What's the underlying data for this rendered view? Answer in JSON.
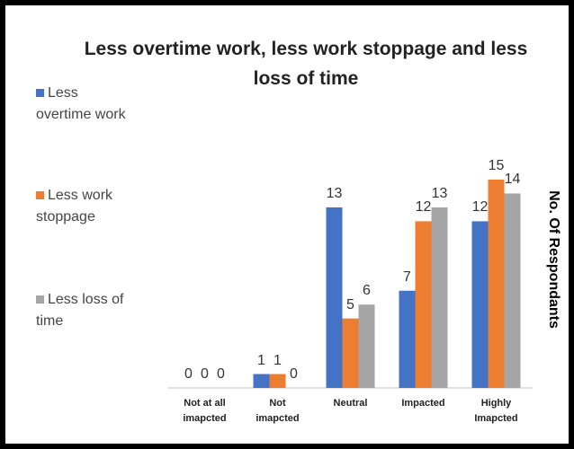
{
  "chart_data": {
    "type": "bar",
    "title": "Less overtime work, less work stoppage and less loss of time",
    "y_label": "No. Of Respondants",
    "categories": [
      "Not at all imapcted",
      "Not imapcted",
      "Neutral",
      "Impacted",
      "Highly Imapcted"
    ],
    "series": [
      {
        "name": "Less overtime work",
        "color": "#4472c4",
        "values": [
          0,
          1,
          13,
          7,
          12
        ]
      },
      {
        "name": "Less work stoppage",
        "color": "#ed7d31",
        "values": [
          0,
          1,
          5,
          12,
          15
        ]
      },
      {
        "name": "Less loss of time",
        "color": "#a5a5a5",
        "values": [
          0,
          0,
          6,
          13,
          14
        ]
      }
    ],
    "ylim": [
      0,
      15
    ],
    "legend": "left"
  }
}
